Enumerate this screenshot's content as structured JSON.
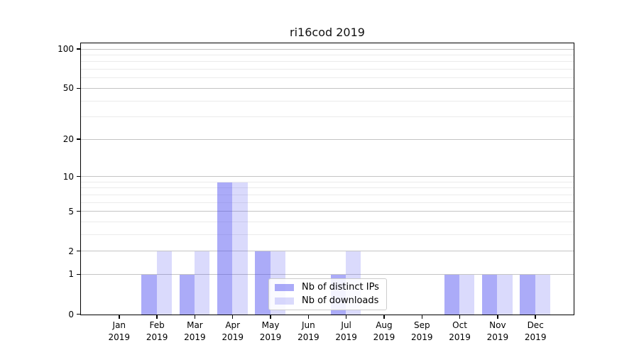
{
  "chart_data": {
    "type": "bar",
    "title": "ri16cod 2019",
    "categories": [
      "Jan",
      "Feb",
      "Mar",
      "Apr",
      "May",
      "Jun",
      "Jul",
      "Aug",
      "Sep",
      "Oct",
      "Nov",
      "Dec"
    ],
    "year_label": "2019",
    "series": [
      {
        "name": "Nb of distinct IPs",
        "color_hex": "#5050f0",
        "fill_alpha": 0.48,
        "values": [
          0,
          1,
          1,
          9,
          2,
          0,
          1,
          0,
          0,
          1,
          1,
          1
        ]
      },
      {
        "name": "Nb of downloads",
        "color_hex": "#5050f0",
        "fill_alpha": 0.21,
        "values": [
          0,
          2,
          2,
          9,
          2,
          0,
          2,
          0,
          0,
          1,
          1,
          1
        ]
      }
    ],
    "y_ticks": [
      0,
      1,
      2,
      5,
      10,
      20,
      50,
      100
    ],
    "y_minor_ticks": [
      3,
      4,
      6,
      7,
      8,
      9,
      30,
      40,
      60,
      70,
      80,
      90
    ],
    "yscale": "log1p",
    "ylim": [
      0,
      110
    ],
    "xlabel": "",
    "ylabel": "",
    "grid": true,
    "legend_position": "lower-center",
    "axis_color": "#000000",
    "major_grid_color": "#c4c4c4",
    "minor_grid_color": "#ebebeb"
  }
}
